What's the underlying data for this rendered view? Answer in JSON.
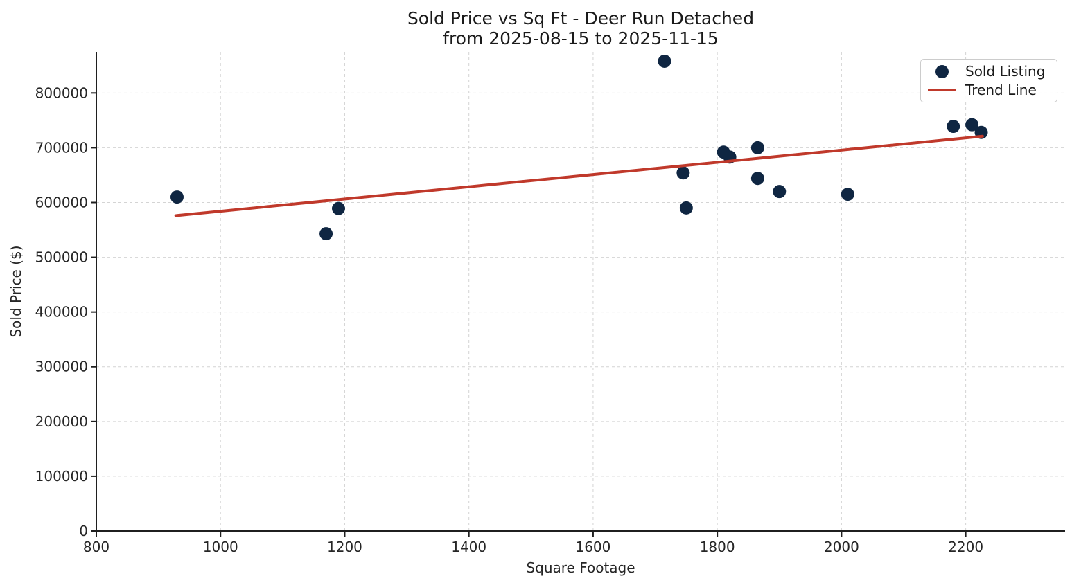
{
  "title": {
    "line1": "Sold Price vs Sq Ft - Deer Run Detached",
    "line2": "from 2025-08-15 to 2025-11-15"
  },
  "legend": {
    "items": [
      {
        "label": "Sold Listing",
        "marker": "dot",
        "color": "#0f2642"
      },
      {
        "label": "Trend Line",
        "marker": "line",
        "color": "#c0392b"
      }
    ]
  },
  "colors": {
    "point": "#0f2642",
    "trend": "#c0392b",
    "grid": "#d4d4d4",
    "spine": "#1f1f1f",
    "text": "#262626"
  },
  "chart_data": {
    "type": "scatter",
    "title": "Sold Price vs Sq Ft - Deer Run Detached",
    "subtitle": "from 2025-08-15 to 2025-11-15",
    "xlabel": "Square Footage",
    "ylabel": "Sold Price ($)",
    "xlim": [
      800,
      2360
    ],
    "ylim": [
      0,
      875000
    ],
    "x_ticks": [
      800,
      1000,
      1200,
      1400,
      1600,
      1800,
      2000,
      2200
    ],
    "y_ticks": [
      0,
      100000,
      200000,
      300000,
      400000,
      500000,
      600000,
      700000,
      800000
    ],
    "grid": true,
    "legend_position": "upper right",
    "series": [
      {
        "name": "Sold Listing",
        "type": "scatter",
        "color": "#0f2642",
        "points": [
          [
            930,
            610000
          ],
          [
            1170,
            543000
          ],
          [
            1190,
            589000
          ],
          [
            1715,
            858000
          ],
          [
            1745,
            654000
          ],
          [
            1750,
            590000
          ],
          [
            1810,
            692000
          ],
          [
            1820,
            683000
          ],
          [
            1865,
            700000
          ],
          [
            1865,
            644000
          ],
          [
            1900,
            620000
          ],
          [
            2010,
            615000
          ],
          [
            2180,
            739000
          ],
          [
            2210,
            742000
          ],
          [
            2225,
            728000
          ]
        ]
      },
      {
        "name": "Trend Line",
        "type": "line",
        "color": "#c0392b",
        "points": [
          [
            928,
            576000
          ],
          [
            2227,
            721000
          ]
        ]
      }
    ]
  }
}
